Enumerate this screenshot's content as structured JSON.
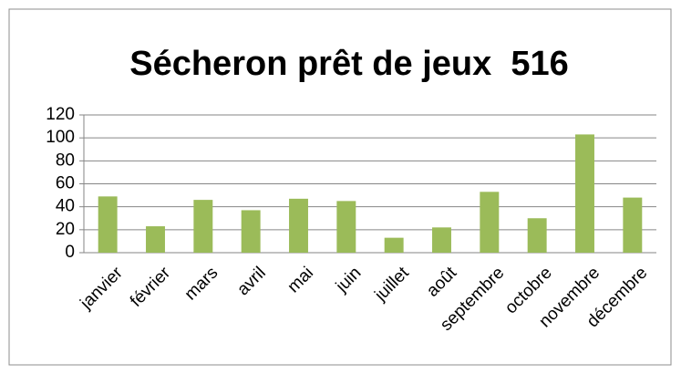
{
  "chart_data": {
    "type": "bar",
    "title": "Sécheron prêt de jeux  516",
    "categories": [
      "janvier",
      "février",
      "mars",
      "avril",
      "mai",
      "juin",
      "juillet",
      "août",
      "septembre",
      "octobre",
      "novembre",
      "décembre"
    ],
    "values": [
      49,
      23,
      46,
      37,
      47,
      45,
      13,
      22,
      53,
      30,
      103,
      48
    ],
    "color": "#9bbb59",
    "ylim": [
      0,
      120
    ],
    "yticks": [
      0,
      20,
      40,
      60,
      80,
      100,
      120
    ],
    "grid": true
  }
}
